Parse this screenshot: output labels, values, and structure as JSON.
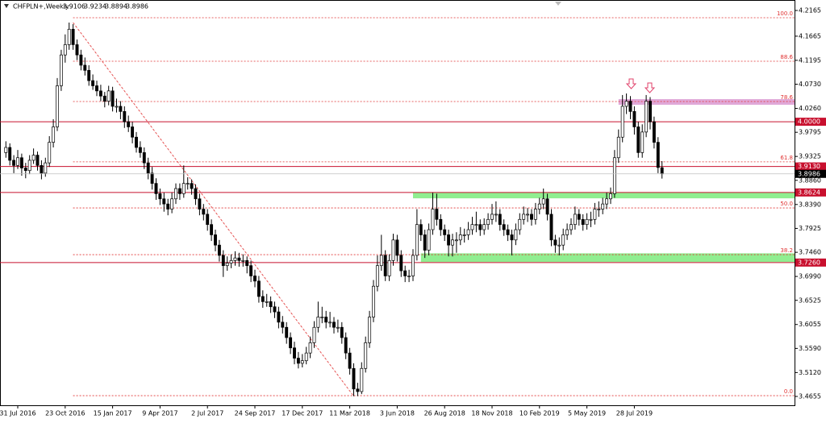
{
  "chart_data": {
    "type": "candlestick",
    "title": "CHFPLN+,Weekly",
    "categories": [
      null,
      null,
      null,
      "31 Jul 2016",
      null,
      null,
      null,
      null,
      null,
      null,
      null,
      null,
      null,
      null,
      null,
      "23 Oct 2016",
      null,
      null,
      null,
      null,
      null,
      null,
      null,
      null,
      null,
      null,
      null,
      "15 Jan 2017",
      null,
      null,
      null,
      null,
      null,
      null,
      null,
      null,
      null,
      null,
      null,
      "9 Apr 2017",
      null,
      null,
      null,
      null,
      null,
      null,
      null,
      null,
      null,
      null,
      null,
      "2 Jul 2017",
      null,
      null,
      null,
      null,
      null,
      null,
      null,
      null,
      null,
      null,
      null,
      "24 Sep 2017",
      null,
      null,
      null,
      null,
      null,
      null,
      null,
      null,
      null,
      null,
      null,
      "17 Dec 2017",
      null,
      null,
      null,
      null,
      null,
      null,
      null,
      null,
      null,
      null,
      null,
      "11 Mar 2018",
      null,
      null,
      null,
      null,
      null,
      null,
      null,
      null,
      null,
      null,
      null,
      "3 Jun 2018",
      null,
      null,
      null,
      null,
      null,
      null,
      null,
      null,
      null,
      null,
      null,
      "26 Aug 2018",
      null,
      null,
      null,
      null,
      null,
      null,
      null,
      null,
      null,
      null,
      null,
      "18 Nov 2018",
      null,
      null,
      null,
      null,
      null,
      null,
      null,
      null,
      null,
      null,
      null,
      "10 Feb 2019",
      null,
      null,
      null,
      null,
      null,
      null,
      null,
      null,
      null,
      null,
      null,
      "5 May 2019",
      null,
      null,
      null,
      null,
      null,
      null,
      null,
      null,
      null,
      null,
      null,
      "28 Jul 2019",
      null,
      null,
      null,
      null,
      null,
      null,
      null
    ],
    "ohlc": [
      [
        3.94,
        3.962,
        3.93,
        3.95
      ],
      [
        3.95,
        3.958,
        3.915,
        3.925
      ],
      [
        3.925,
        3.935,
        3.9,
        3.915
      ],
      [
        3.915,
        3.945,
        3.908,
        3.93
      ],
      [
        3.93,
        3.938,
        3.895,
        3.91
      ],
      [
        3.91,
        3.92,
        3.89,
        3.905
      ],
      [
        3.905,
        3.935,
        3.898,
        3.925
      ],
      [
        3.925,
        3.948,
        3.918,
        3.935
      ],
      [
        3.935,
        3.942,
        3.905,
        3.915
      ],
      [
        3.915,
        3.925,
        3.888,
        3.9
      ],
      [
        3.9,
        3.93,
        3.893,
        3.92
      ],
      [
        3.92,
        3.972,
        3.912,
        3.96
      ],
      [
        3.96,
        4.005,
        3.95,
        3.99
      ],
      [
        3.99,
        4.085,
        3.982,
        4.07
      ],
      [
        4.07,
        4.14,
        4.06,
        4.13
      ],
      [
        4.13,
        4.17,
        4.115,
        4.15
      ],
      [
        4.15,
        4.193,
        4.14,
        4.18
      ],
      [
        4.18,
        4.19,
        4.14,
        4.15
      ],
      [
        4.15,
        4.16,
        4.12,
        4.13
      ],
      [
        4.13,
        4.14,
        4.1,
        4.11
      ],
      [
        4.11,
        4.125,
        4.09,
        4.1
      ],
      [
        4.1,
        4.11,
        4.07,
        4.08
      ],
      [
        4.08,
        4.092,
        4.062,
        4.07
      ],
      [
        4.07,
        4.08,
        4.05,
        4.06
      ],
      [
        4.06,
        4.072,
        4.04,
        4.05
      ],
      [
        4.05,
        4.058,
        4.028,
        4.04
      ],
      [
        4.04,
        4.07,
        4.032,
        4.06
      ],
      [
        4.06,
        4.068,
        4.02,
        4.03
      ],
      [
        4.03,
        4.045,
        4.018,
        4.03
      ],
      [
        4.03,
        4.04,
        4.005,
        4.02
      ],
      [
        4.02,
        4.03,
        3.988,
        4.0
      ],
      [
        4.0,
        4.012,
        3.98,
        3.99
      ],
      [
        3.99,
        4.0,
        3.958,
        3.97
      ],
      [
        3.97,
        3.98,
        3.94,
        3.95
      ],
      [
        3.95,
        3.962,
        3.93,
        3.94
      ],
      [
        3.94,
        3.95,
        3.908,
        3.92
      ],
      [
        3.92,
        3.93,
        3.888,
        3.9
      ],
      [
        3.9,
        3.912,
        3.868,
        3.88
      ],
      [
        3.88,
        3.89,
        3.848,
        3.86
      ],
      [
        3.86,
        3.87,
        3.838,
        3.85
      ],
      [
        3.85,
        3.862,
        3.825,
        3.84
      ],
      [
        3.84,
        3.85,
        3.818,
        3.83
      ],
      [
        3.83,
        3.862,
        3.822,
        3.85
      ],
      [
        3.85,
        3.88,
        3.84,
        3.87
      ],
      [
        3.87,
        3.88,
        3.848,
        3.86
      ],
      [
        3.86,
        3.915,
        3.852,
        3.88
      ],
      [
        3.88,
        3.892,
        3.868,
        3.88
      ],
      [
        3.88,
        3.888,
        3.858,
        3.87
      ],
      [
        3.87,
        3.878,
        3.838,
        3.85
      ],
      [
        3.85,
        3.86,
        3.818,
        3.83
      ],
      [
        3.83,
        3.84,
        3.808,
        3.82
      ],
      [
        3.82,
        3.83,
        3.788,
        3.8
      ],
      [
        3.8,
        3.81,
        3.768,
        3.78
      ],
      [
        3.78,
        3.79,
        3.748,
        3.76
      ],
      [
        3.76,
        3.77,
        3.728,
        3.74
      ],
      [
        3.74,
        3.75,
        3.698,
        3.72
      ],
      [
        3.72,
        3.738,
        3.71,
        3.725
      ],
      [
        3.725,
        3.742,
        3.715,
        3.73
      ],
      [
        3.73,
        3.748,
        3.72,
        3.735
      ],
      [
        3.735,
        3.745,
        3.718,
        3.73
      ],
      [
        3.73,
        3.742,
        3.718,
        3.73
      ],
      [
        3.73,
        3.738,
        3.705,
        3.72
      ],
      [
        3.72,
        3.73,
        3.688,
        3.7
      ],
      [
        3.7,
        3.712,
        3.678,
        3.69
      ],
      [
        3.69,
        3.7,
        3.648,
        3.66
      ],
      [
        3.66,
        3.672,
        3.638,
        3.65
      ],
      [
        3.65,
        3.665,
        3.64,
        3.65
      ],
      [
        3.65,
        3.66,
        3.628,
        3.64
      ],
      [
        3.64,
        3.65,
        3.618,
        3.63
      ],
      [
        3.63,
        3.64,
        3.598,
        3.61
      ],
      [
        3.61,
        3.622,
        3.588,
        3.6
      ],
      [
        3.6,
        3.61,
        3.568,
        3.58
      ],
      [
        3.58,
        3.59,
        3.548,
        3.56
      ],
      [
        3.56,
        3.572,
        3.528,
        3.54
      ],
      [
        3.54,
        3.552,
        3.52,
        3.53
      ],
      [
        3.53,
        3.548,
        3.522,
        3.535
      ],
      [
        3.535,
        3.562,
        3.528,
        3.55
      ],
      [
        3.55,
        3.582,
        3.54,
        3.57
      ],
      [
        3.57,
        3.612,
        3.56,
        3.6
      ],
      [
        3.6,
        3.65,
        3.59,
        3.62
      ],
      [
        3.62,
        3.64,
        3.608,
        3.62
      ],
      [
        3.62,
        3.632,
        3.598,
        3.61
      ],
      [
        3.61,
        3.63,
        3.6,
        3.61
      ],
      [
        3.61,
        3.62,
        3.588,
        3.6
      ],
      [
        3.6,
        3.615,
        3.59,
        3.6
      ],
      [
        3.6,
        3.61,
        3.568,
        3.58
      ],
      [
        3.58,
        3.59,
        3.538,
        3.55
      ],
      [
        3.55,
        3.56,
        3.508,
        3.52
      ],
      [
        3.52,
        3.53,
        3.466,
        3.48
      ],
      [
        3.48,
        3.492,
        3.466,
        3.475
      ],
      [
        3.475,
        3.532,
        3.47,
        3.52
      ],
      [
        3.52,
        3.582,
        3.512,
        3.57
      ],
      [
        3.57,
        3.632,
        3.56,
        3.62
      ],
      [
        3.62,
        3.692,
        3.61,
        3.68
      ],
      [
        3.68,
        3.74,
        3.67,
        3.72
      ],
      [
        3.72,
        3.78,
        3.71,
        3.74
      ],
      [
        3.74,
        3.75,
        3.69,
        3.7
      ],
      [
        3.7,
        3.742,
        3.69,
        3.73
      ],
      [
        3.73,
        3.782,
        3.72,
        3.77
      ],
      [
        3.77,
        3.78,
        3.728,
        3.74
      ],
      [
        3.74,
        3.75,
        3.698,
        3.71
      ],
      [
        3.71,
        3.72,
        3.688,
        3.7
      ],
      [
        3.7,
        3.712,
        3.688,
        3.7
      ],
      [
        3.7,
        3.752,
        3.69,
        3.74
      ],
      [
        3.74,
        3.83,
        3.73,
        3.8
      ],
      [
        3.8,
        3.81,
        3.768,
        3.78
      ],
      [
        3.78,
        3.79,
        3.735,
        3.75
      ],
      [
        3.75,
        3.802,
        3.74,
        3.79
      ],
      [
        3.79,
        3.862,
        3.78,
        3.83
      ],
      [
        3.83,
        3.86,
        3.798,
        3.81
      ],
      [
        3.81,
        3.82,
        3.778,
        3.79
      ],
      [
        3.79,
        3.8,
        3.768,
        3.78
      ],
      [
        3.78,
        3.79,
        3.738,
        3.76
      ],
      [
        3.76,
        3.782,
        3.738,
        3.77
      ],
      [
        3.77,
        3.785,
        3.745,
        3.77
      ],
      [
        3.77,
        3.795,
        3.76,
        3.78
      ],
      [
        3.78,
        3.792,
        3.765,
        3.78
      ],
      [
        3.78,
        3.805,
        3.77,
        3.79
      ],
      [
        3.79,
        3.815,
        3.78,
        3.8
      ],
      [
        3.8,
        3.825,
        3.785,
        3.8
      ],
      [
        3.8,
        3.81,
        3.778,
        3.79
      ],
      [
        3.79,
        3.812,
        3.78,
        3.8
      ],
      [
        3.8,
        3.822,
        3.79,
        3.81
      ],
      [
        3.81,
        3.84,
        3.8,
        3.82
      ],
      [
        3.82,
        3.845,
        3.805,
        3.82
      ],
      [
        3.82,
        3.83,
        3.788,
        3.8
      ],
      [
        3.8,
        3.81,
        3.778,
        3.79
      ],
      [
        3.79,
        3.8,
        3.768,
        3.78
      ],
      [
        3.78,
        3.79,
        3.74,
        3.77
      ],
      [
        3.77,
        3.802,
        3.76,
        3.79
      ],
      [
        3.79,
        3.822,
        3.78,
        3.81
      ],
      [
        3.81,
        3.835,
        3.8,
        3.82
      ],
      [
        3.82,
        3.832,
        3.805,
        3.82
      ],
      [
        3.82,
        3.83,
        3.798,
        3.81
      ],
      [
        3.81,
        3.842,
        3.8,
        3.83
      ],
      [
        3.83,
        3.852,
        3.82,
        3.84
      ],
      [
        3.84,
        3.87,
        3.83,
        3.85
      ],
      [
        3.85,
        3.86,
        3.808,
        3.82
      ],
      [
        3.82,
        3.83,
        3.758,
        3.77
      ],
      [
        3.77,
        3.78,
        3.745,
        3.76
      ],
      [
        3.76,
        3.775,
        3.74,
        3.76
      ],
      [
        3.76,
        3.792,
        3.75,
        3.78
      ],
      [
        3.78,
        3.802,
        3.77,
        3.79
      ],
      [
        3.79,
        3.812,
        3.78,
        3.8
      ],
      [
        3.8,
        3.835,
        3.79,
        3.82
      ],
      [
        3.82,
        3.83,
        3.798,
        3.81
      ],
      [
        3.81,
        3.82,
        3.788,
        3.8
      ],
      [
        3.8,
        3.822,
        3.79,
        3.81
      ],
      [
        3.81,
        3.825,
        3.795,
        3.81
      ],
      [
        3.81,
        3.842,
        3.8,
        3.83
      ],
      [
        3.83,
        3.845,
        3.815,
        3.83
      ],
      [
        3.83,
        3.852,
        3.82,
        3.84
      ],
      [
        3.84,
        3.862,
        3.83,
        3.85
      ],
      [
        3.85,
        3.872,
        3.84,
        3.86
      ],
      [
        3.86,
        3.945,
        3.852,
        3.93
      ],
      [
        3.93,
        3.985,
        3.92,
        3.97
      ],
      [
        3.97,
        4.052,
        3.96,
        4.03
      ],
      [
        4.03,
        4.055,
        4.015,
        4.04
      ],
      [
        4.04,
        4.05,
        4.005,
        4.02
      ],
      [
        4.02,
        4.03,
        3.975,
        3.99
      ],
      [
        3.99,
        4.0,
        3.93,
        3.94
      ],
      [
        3.94,
        3.995,
        3.93,
        3.98
      ],
      [
        3.98,
        4.052,
        3.97,
        4.04
      ],
      [
        4.04,
        4.048,
        3.985,
        4.0
      ],
      [
        4.0,
        4.01,
        3.948,
        3.96
      ],
      [
        3.96,
        3.97,
        3.9,
        3.911
      ],
      [
        3.9106,
        3.9234,
        3.8894,
        3.8986
      ]
    ],
    "ylim": [
      3.4483,
      4.2369
    ],
    "yticks": [
      4.2165,
      4.1665,
      4.1195,
      {
        "value": 4.073,
        "label": "4.0730"
      },
      {
        "value": 4.026,
        "label": "4.0260"
      },
      3.9795,
      3.9325,
      {
        "value": 3.886,
        "label": "3.8860"
      },
      {
        "value": 3.839,
        "label": "3.8390"
      },
      3.7925,
      {
        "value": 3.746,
        "label": "3.7460"
      },
      {
        "value": 3.699,
        "label": "3.6990"
      },
      3.6525,
      3.6055,
      {
        "value": 3.559,
        "label": "3.5590"
      },
      {
        "value": 3.512,
        "label": "3.5120"
      },
      3.4655
    ],
    "levels": [
      {
        "value": 4,
        "label": "4.0000",
        "color": "#c8102e"
      },
      {
        "value": 3.913,
        "label": "3.9130",
        "color": "#c8102e"
      },
      {
        "value": 3.8624,
        "label": "3.8624",
        "color": "#c8102e"
      },
      {
        "value": 3.726,
        "label": "3.7260",
        "color": "#c8102e"
      }
    ],
    "fib_levels": [
      {
        "price": 4.2024,
        "label": "100.0"
      },
      {
        "price": 4.1177,
        "label": "88.6"
      },
      {
        "price": 4.0393,
        "label": "78.6"
      },
      {
        "price": 3.922,
        "label": "61.8"
      },
      {
        "price": 3.8323,
        "label": "50.0"
      },
      {
        "price": 3.7414,
        "label": "38.2"
      },
      {
        "price": 3.467,
        "label": "0.0"
      }
    ],
    "fib_color": "#e03030",
    "zones": [
      {
        "from": 103,
        "low": 3.851,
        "high": 3.8624,
        "color": "#90ee90"
      },
      {
        "from": 105,
        "low": 3.727,
        "high": 3.744,
        "color": "#90ee90"
      },
      {
        "from": 155,
        "low": 4.033,
        "high": 4.044,
        "color": "#e0a8d8"
      }
    ],
    "trendline": {
      "x": [
        17,
        88
      ],
      "y": [
        4.193,
        3.466
      ],
      "color": "#e03030"
    },
    "bull_color": "#ffffff",
    "bear_color": "#000000",
    "current_color": "#000000"
  }
}
